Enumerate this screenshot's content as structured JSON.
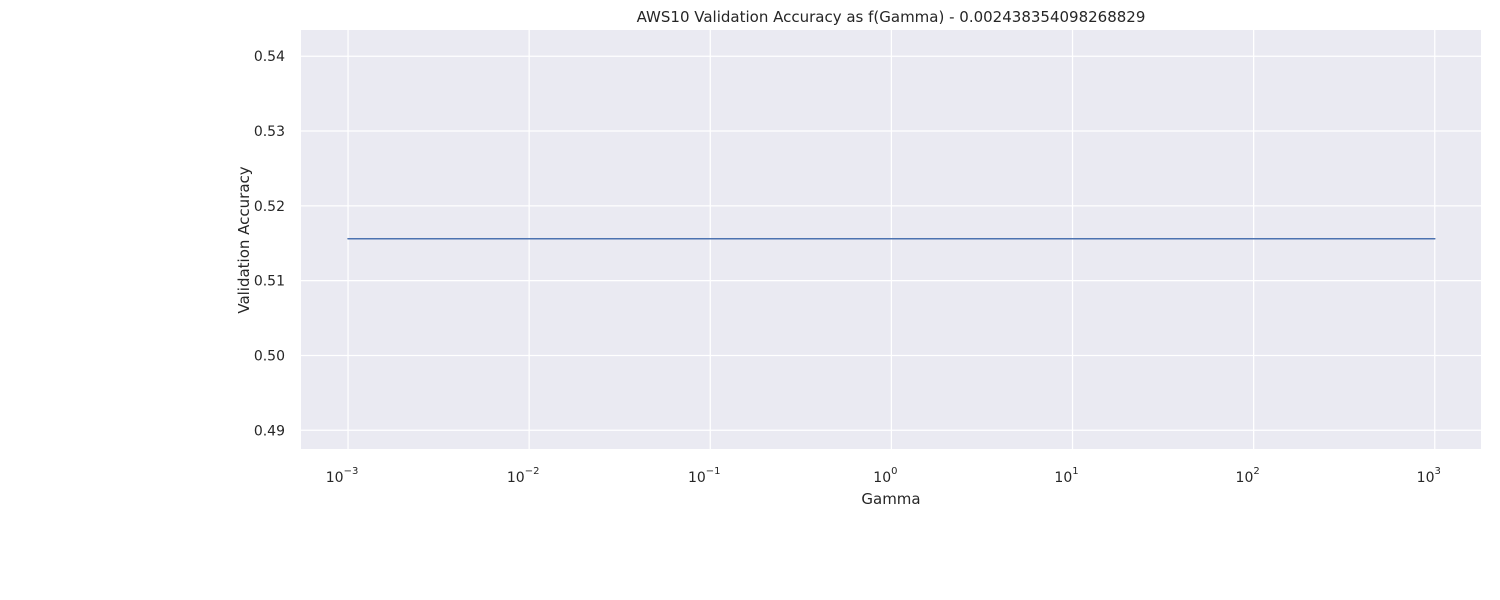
{
  "chart_data": {
    "type": "line",
    "title": "AWS10 Validation Accuracy as f(Gamma) - 0.002438354098268829",
    "xlabel": "Gamma",
    "ylabel": "Validation Accuracy",
    "xscale": "log",
    "xlim": [
      0.00055,
      1800
    ],
    "ylim": [
      0.4875,
      0.5435
    ],
    "grid": true,
    "background_color": "#eaeaf2",
    "grid_color": "#ffffff",
    "x_ticks": [
      {
        "value": 0.001,
        "base": "10",
        "exp": "−3"
      },
      {
        "value": 0.01,
        "base": "10",
        "exp": "−2"
      },
      {
        "value": 0.1,
        "base": "10",
        "exp": "−1"
      },
      {
        "value": 1,
        "base": "10",
        "exp": "0"
      },
      {
        "value": 10,
        "base": "10",
        "exp": "1"
      },
      {
        "value": 100,
        "base": "10",
        "exp": "2"
      },
      {
        "value": 1000,
        "base": "10",
        "exp": "3"
      }
    ],
    "y_ticks": [
      {
        "value": 0.49,
        "label": "0.49"
      },
      {
        "value": 0.5,
        "label": "0.50"
      },
      {
        "value": 0.51,
        "label": "0.51"
      },
      {
        "value": 0.52,
        "label": "0.52"
      },
      {
        "value": 0.53,
        "label": "0.53"
      },
      {
        "value": 0.54,
        "label": "0.54"
      }
    ],
    "series": [
      {
        "color": "#4c72b0",
        "x": [
          0.001,
          0.01,
          0.1,
          1,
          10,
          100,
          1000
        ],
        "y": [
          0.5156,
          0.5156,
          0.5156,
          0.5156,
          0.5156,
          0.5156,
          0.5156
        ]
      }
    ]
  }
}
